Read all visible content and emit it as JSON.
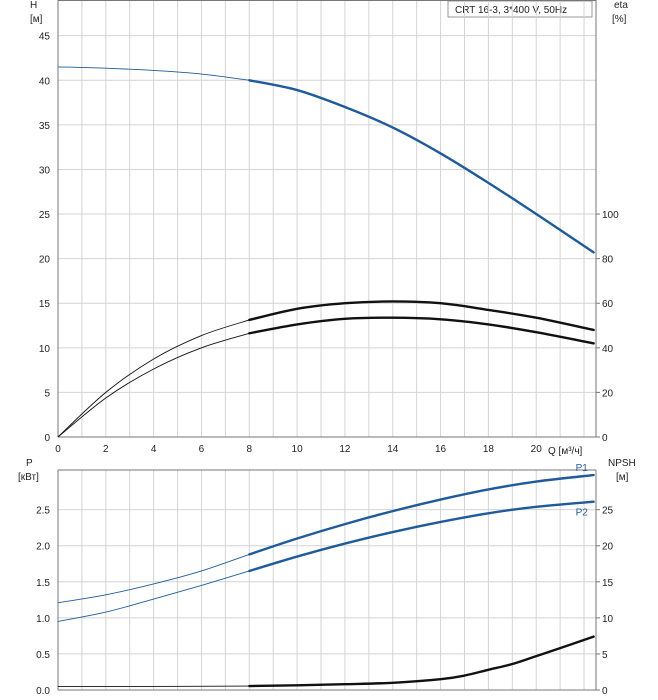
{
  "title": "CRT 16-3, 3*400 V, 50Hz",
  "colors": {
    "blue": "#1f5b9a",
    "black": "#111111"
  },
  "chart_data": [
    {
      "type": "line",
      "name": "head_eta",
      "xlabel": "Q [м³/ч]",
      "ylabel": {
        "left_name": "H",
        "left_unit": "[м]",
        "right_name": "eta",
        "right_unit": "[%]"
      },
      "xlim": [
        0,
        22.5
      ],
      "ylim": [
        0,
        49
      ],
      "y2lim": [
        0,
        196
      ],
      "x_ticks": [
        0,
        2,
        4,
        6,
        8,
        10,
        12,
        14,
        16,
        18,
        20
      ],
      "y_ticks": [
        0,
        5,
        10,
        15,
        20,
        25,
        30,
        35,
        40,
        45
      ],
      "y2_ticks": [
        0,
        20,
        40,
        60,
        80,
        100
      ],
      "grid": true,
      "series": [
        {
          "key": "H",
          "axis": "left",
          "color": "#1f5b9a",
          "op_from": 8,
          "x": [
            0,
            2,
            4,
            6,
            8,
            10,
            12,
            14,
            16,
            18,
            20,
            22.4
          ],
          "y": [
            41.5,
            41.35,
            41.1,
            40.7,
            40.0,
            38.9,
            37.0,
            34.7,
            31.8,
            28.5,
            25.0,
            20.7
          ]
        },
        {
          "key": "eta_upper",
          "axis": "right",
          "color": "#111111",
          "op_from": 8,
          "x": [
            0,
            2,
            4,
            6,
            8,
            10,
            12,
            14,
            16,
            18,
            20,
            22.4
          ],
          "y": [
            0,
            20,
            35,
            45.5,
            52.5,
            57.5,
            60,
            60.8,
            60,
            57,
            53.5,
            48
          ]
        },
        {
          "key": "eta_lower",
          "axis": "right",
          "color": "#111111",
          "op_from": 8,
          "x": [
            0,
            2,
            4,
            6,
            8,
            10,
            12,
            14,
            16,
            18,
            20,
            22.4
          ],
          "y": [
            0,
            17.5,
            30.5,
            40,
            46.5,
            50.5,
            53,
            53.5,
            52.8,
            50.5,
            47,
            42
          ]
        }
      ]
    },
    {
      "type": "line",
      "name": "power_npsh",
      "ylabel": {
        "left_name": "P",
        "left_unit": "[кВт]",
        "right_name": "NPSH",
        "right_unit": "[м]"
      },
      "xlim": [
        0,
        22.5
      ],
      "ylim": [
        0,
        3.05
      ],
      "y2lim": [
        0,
        30.5
      ],
      "y_ticks": [
        0.0,
        0.5,
        1.0,
        1.5,
        2.0,
        2.5
      ],
      "y2_ticks": [
        0,
        5,
        10,
        15,
        20,
        25
      ],
      "grid": true,
      "series": [
        {
          "key": "P1",
          "name": "P1",
          "axis": "left",
          "color": "#1f5b9a",
          "op_from": 8,
          "x": [
            0,
            2,
            4,
            6,
            8,
            10,
            12,
            14,
            16,
            18,
            20,
            22.4
          ],
          "y": [
            1.21,
            1.32,
            1.47,
            1.65,
            1.88,
            2.1,
            2.3,
            2.48,
            2.64,
            2.78,
            2.89,
            2.98
          ]
        },
        {
          "key": "P2",
          "name": "P2",
          "axis": "left",
          "color": "#1f5b9a",
          "op_from": 8,
          "x": [
            0,
            2,
            4,
            6,
            8,
            10,
            12,
            14,
            16,
            18,
            20,
            22.4
          ],
          "y": [
            0.95,
            1.08,
            1.26,
            1.45,
            1.65,
            1.85,
            2.03,
            2.19,
            2.33,
            2.45,
            2.54,
            2.61
          ]
        },
        {
          "key": "NPSH",
          "axis": "right",
          "color": "#111111",
          "op_from": 8,
          "x": [
            0,
            4,
            8,
            10,
            12,
            14,
            16,
            17,
            18,
            19,
            20,
            21,
            22.4
          ],
          "y": [
            0.5,
            0.5,
            0.55,
            0.65,
            0.8,
            1.0,
            1.5,
            2.0,
            2.8,
            3.6,
            4.7,
            5.8,
            7.4
          ]
        }
      ]
    }
  ]
}
